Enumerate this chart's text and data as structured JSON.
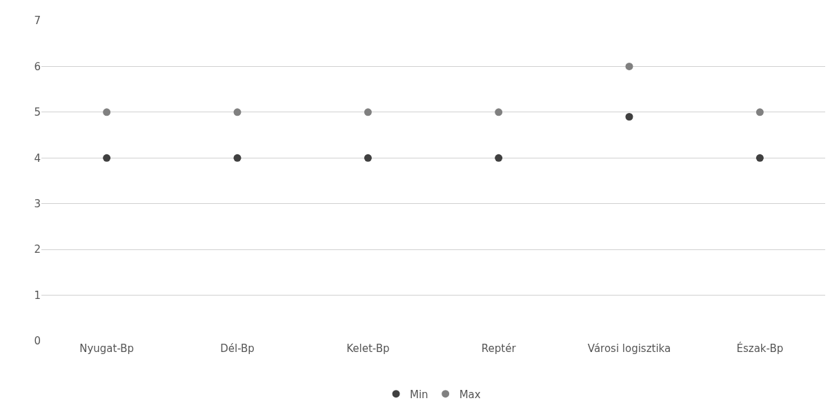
{
  "chart_data": {
    "type": "scatter",
    "categories": [
      "Nyugat-Bp",
      "Dél-Bp",
      "Kelet-Bp",
      "Reptér",
      "Városi logisztika",
      "Észak-Bp"
    ],
    "series": [
      {
        "name": "Min",
        "color": "#404040",
        "values": [
          4,
          4,
          4,
          4,
          4.9,
          4
        ]
      },
      {
        "name": "Max",
        "color": "#808080",
        "values": [
          5,
          5,
          5,
          5,
          6,
          5
        ]
      }
    ],
    "ylim": [
      0,
      7
    ],
    "yticks": [
      0,
      1,
      2,
      3,
      4,
      5,
      6,
      7
    ],
    "grid": "y",
    "legend": "bottom",
    "marker": "circle"
  }
}
